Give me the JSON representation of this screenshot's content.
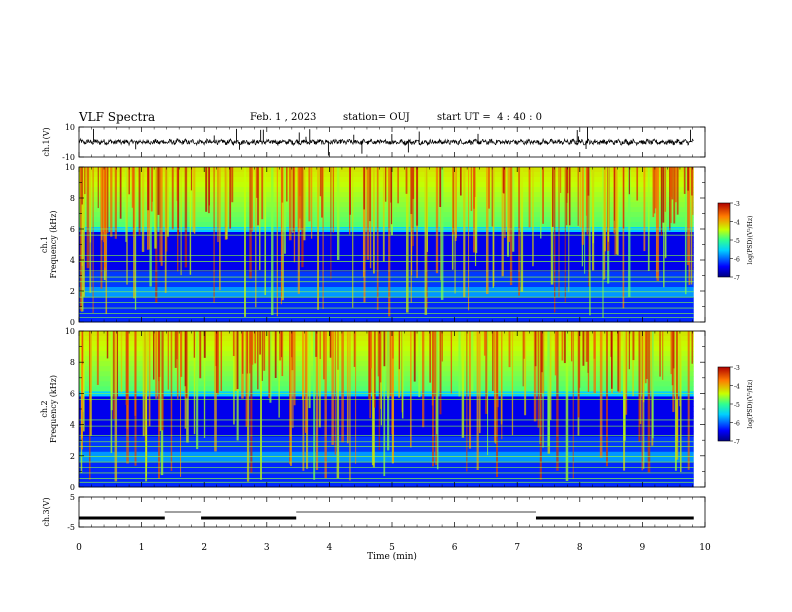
{
  "header": {
    "title": "VLF Spectra",
    "date": "Feb. 1 , 2023",
    "station": "station= OUJ",
    "start": "start UT =  4 : 40 : 0"
  },
  "chart_data": [
    {
      "type": "line",
      "ylabel": "ch.1(V)",
      "ylim": [
        -10,
        10
      ],
      "yticks": [
        "10",
        "-10"
      ],
      "x_range_min": [
        0,
        9.82
      ],
      "description_values": {
        "baseline": 0,
        "noise_amplitude": 1.5,
        "spike_amplitude": 10
      }
    },
    {
      "type": "heatmap",
      "ylabel": "ch.1\nFrequency (kHz)",
      "ylim": [
        0,
        10
      ],
      "yticks": [
        "0",
        "2",
        "4",
        "6",
        "8",
        "10"
      ],
      "colorbar": {
        "label": "log(PSD)(V²/Hz)",
        "range": [
          -7,
          -3
        ],
        "ticks": [
          "-3",
          "-4",
          "-5",
          "-6",
          "-7"
        ]
      }
    },
    {
      "type": "heatmap",
      "ylabel": "ch.2\nFrequency (kHz)",
      "ylim": [
        0,
        10
      ],
      "yticks": [
        "0",
        "2",
        "4",
        "6",
        "8",
        "10"
      ],
      "colorbar": {
        "label": "log(PSD)(V²/Hz)",
        "range": [
          -7,
          -3
        ],
        "ticks": [
          "-3",
          "-4",
          "-5",
          "-6",
          "-7"
        ]
      }
    },
    {
      "type": "line",
      "ylabel": "ch.3(V)",
      "ylim": [
        -5,
        5
      ],
      "yticks": [
        "5",
        "-5"
      ],
      "segments_min": [
        [
          0,
          1.37,
          -2
        ],
        [
          1.37,
          1.95,
          0
        ],
        [
          1.95,
          3.47,
          -2
        ],
        [
          3.47,
          7.3,
          0
        ],
        [
          7.3,
          9.82,
          -2
        ]
      ]
    }
  ],
  "xaxis": {
    "label": "Time (min)",
    "range": [
      0,
      10
    ],
    "ticks": [
      "0",
      "1",
      "2",
      "3",
      "4",
      "5",
      "6",
      "7",
      "8",
      "9",
      "10"
    ]
  }
}
